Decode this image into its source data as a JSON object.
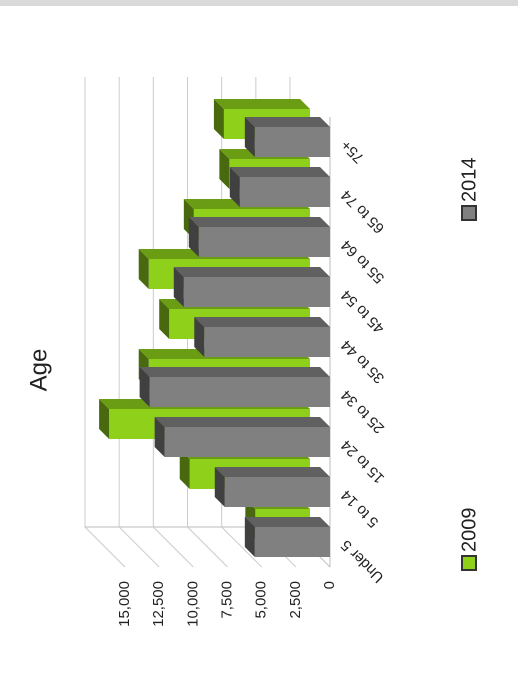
{
  "chart_data": {
    "type": "bar3d",
    "title": "Age",
    "categories": [
      "Under 5",
      "5 to 14",
      "15 to 24",
      "25 to 34",
      "35 to 44",
      "45 to 54",
      "55 to 64",
      "65 to 74",
      "75+"
    ],
    "series": [
      {
        "name": "2009",
        "color": "#8fd11a",
        "values": [
          4000,
          8800,
          14700,
          11800,
          10300,
          11800,
          8500,
          5900,
          6300
        ]
      },
      {
        "name": "2014",
        "color": "#808080",
        "values": [
          5500,
          7700,
          12100,
          13200,
          9200,
          10700,
          9600,
          6600,
          5500
        ]
      }
    ],
    "ylim": [
      0,
      15000
    ],
    "yticks": [
      0,
      {
        "value": 2500,
        "label": "2,500"
      },
      {
        "value": 5000,
        "label": "5,000"
      },
      {
        "value": 7500,
        "label": "7,500"
      },
      {
        "value": 10000,
        "label": "10,000"
      },
      {
        "value": 12500,
        "label": "12,500"
      },
      {
        "value": 15000,
        "label": "15,000"
      }
    ],
    "grid": true
  }
}
